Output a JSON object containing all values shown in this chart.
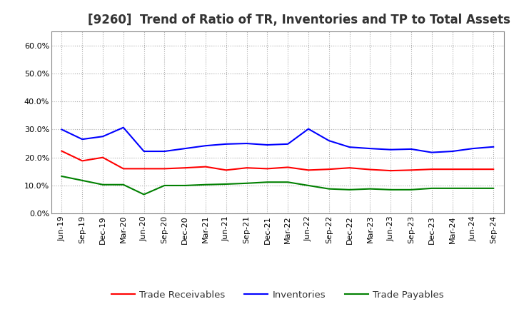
{
  "title": "[9260]  Trend of Ratio of TR, Inventories and TP to Total Assets",
  "labels": [
    "Jun-19",
    "Sep-19",
    "Dec-19",
    "Mar-20",
    "Jun-20",
    "Sep-20",
    "Dec-20",
    "Mar-21",
    "Jun-21",
    "Sep-21",
    "Dec-21",
    "Mar-22",
    "Jun-22",
    "Sep-22",
    "Dec-22",
    "Mar-23",
    "Jun-23",
    "Sep-23",
    "Dec-23",
    "Mar-24",
    "Jun-24",
    "Sep-24"
  ],
  "trade_receivables": [
    0.223,
    0.188,
    0.2,
    0.16,
    0.16,
    0.16,
    0.163,
    0.167,
    0.155,
    0.163,
    0.16,
    0.165,
    0.155,
    0.158,
    0.163,
    0.157,
    0.153,
    0.155,
    0.158,
    0.158,
    0.158,
    0.158
  ],
  "inventories": [
    0.3,
    0.265,
    0.275,
    0.307,
    0.222,
    0.222,
    0.232,
    0.242,
    0.248,
    0.25,
    0.245,
    0.248,
    0.302,
    0.26,
    0.237,
    0.232,
    0.228,
    0.23,
    0.218,
    0.222,
    0.232,
    0.238
  ],
  "trade_payables": [
    0.133,
    0.118,
    0.103,
    0.103,
    0.068,
    0.1,
    0.1,
    0.103,
    0.105,
    0.108,
    0.112,
    0.112,
    0.1,
    0.088,
    0.085,
    0.088,
    0.085,
    0.085,
    0.09,
    0.09,
    0.09,
    0.09
  ],
  "line_colors": {
    "trade_receivables": "#ff0000",
    "inventories": "#0000ff",
    "trade_payables": "#008000"
  },
  "legend_labels": [
    "Trade Receivables",
    "Inventories",
    "Trade Payables"
  ],
  "ylim": [
    0.0,
    0.65
  ],
  "yticks": [
    0.0,
    0.1,
    0.2,
    0.3,
    0.4,
    0.5,
    0.6
  ],
  "background_color": "#ffffff",
  "plot_bg_color": "#ffffff",
  "grid_color": "#aaaaaa",
  "title_fontsize": 12,
  "tick_fontsize": 8,
  "legend_fontsize": 9.5,
  "title_color": "#333333"
}
